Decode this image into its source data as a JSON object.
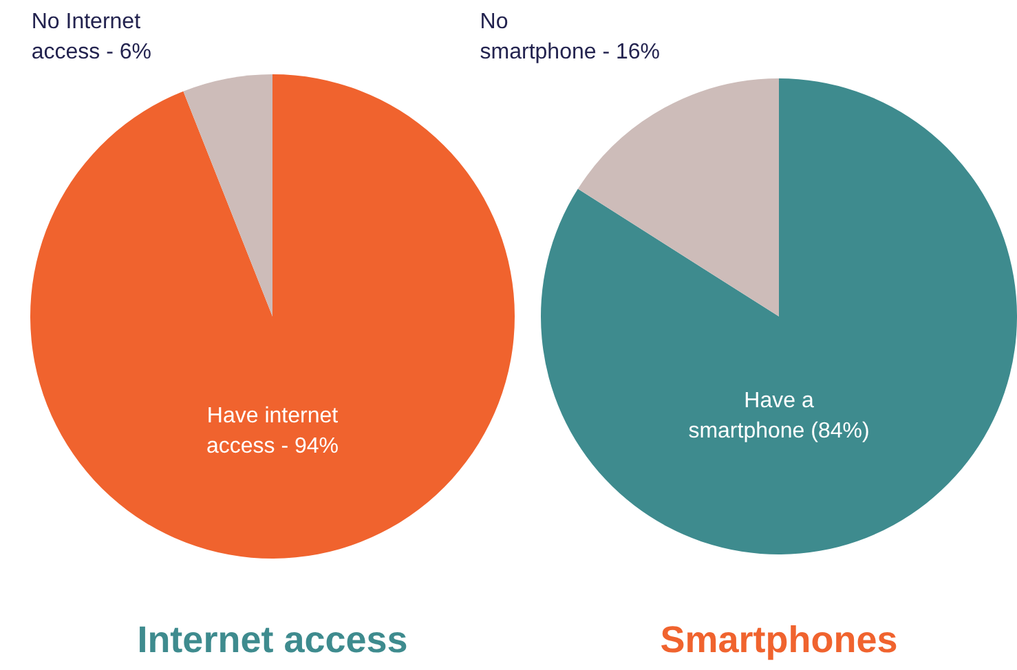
{
  "chart_data": [
    {
      "type": "pie",
      "title": "Internet access",
      "categories": [
        "Have internet\naccess - 94%",
        "No Internet\naccess - 6%"
      ],
      "values": [
        94,
        6
      ],
      "colors": [
        "#f0632e",
        "#cdbcb9"
      ]
    },
    {
      "type": "pie",
      "title": "Smartphones",
      "categories": [
        "Have a\nsmartphone (84%)",
        "No\nsmartphone - 16%"
      ],
      "values": [
        84,
        16
      ],
      "colors": [
        "#3e8b8e",
        "#cdbcb9"
      ]
    }
  ]
}
